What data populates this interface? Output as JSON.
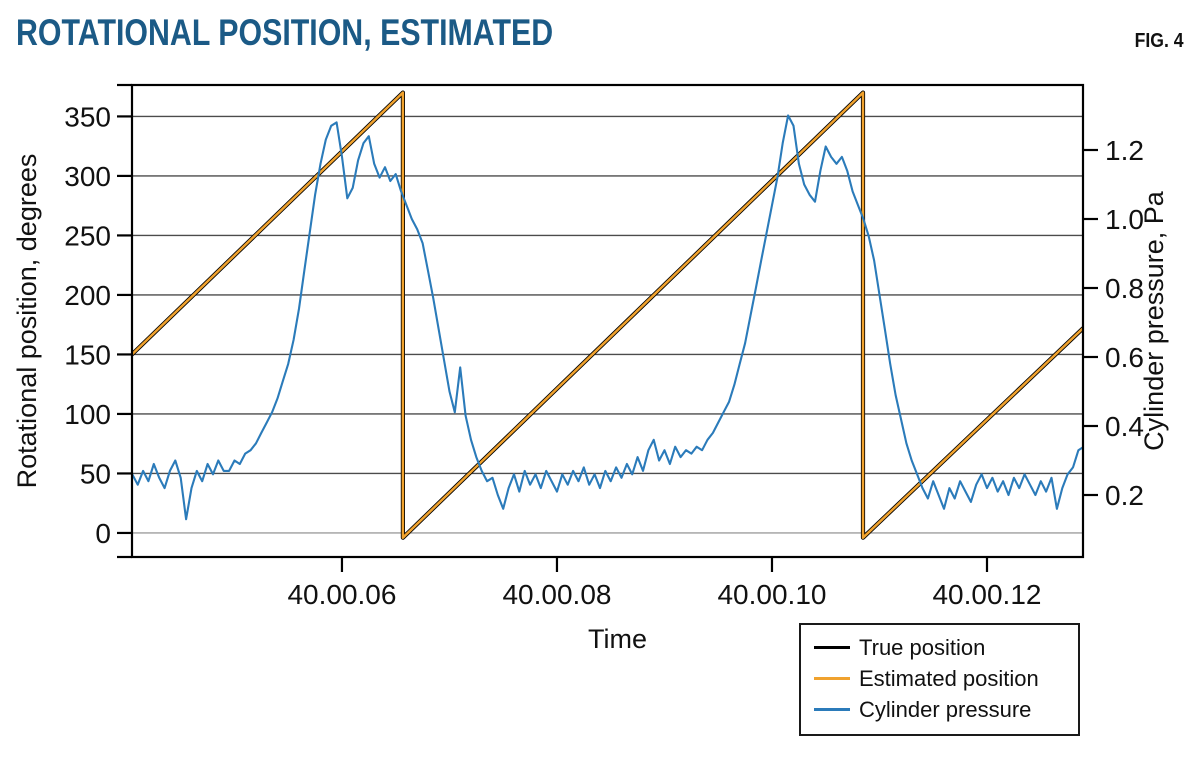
{
  "header": {
    "title": "ROTATIONAL POSITION, ESTIMATED",
    "title_color": "#1b5a86",
    "figure_label": "FIG. 4"
  },
  "chart_data": {
    "type": "line",
    "title": "ROTATIONAL POSITION, ESTIMATED",
    "xlabel": "Time",
    "x_range": [
      4.047,
      12.893
    ],
    "x_ticks": [
      {
        "value": 6,
        "label": "40.00.06"
      },
      {
        "value": 8,
        "label": "40.00.08"
      },
      {
        "value": 10,
        "label": "40.00.10"
      },
      {
        "value": 12,
        "label": "40.00.12"
      }
    ],
    "y_left": {
      "label": "Rotational position, degrees",
      "ticks": [
        0,
        50,
        100,
        150,
        200,
        250,
        300,
        350
      ],
      "range": [
        -20.2,
        376.4
      ],
      "edge_ticks": true
    },
    "y_right": {
      "label": "Cylinder pressure, Pa",
      "ticks": [
        0.2,
        0.4,
        0.6,
        0.8,
        1.0,
        1.2
      ],
      "range": [
        0.0203,
        1.3884
      ],
      "edge_ticks": false
    },
    "grid": {
      "horizontal": true,
      "vertical": false,
      "color": "#4b4b4b",
      "zero_line_color": "#9e9e9e",
      "spine_color": "#000000",
      "tick_label_color": "#111111"
    },
    "legend": {
      "position": "bottom-right-outside",
      "entries": [
        {
          "label": "True position",
          "color": "#000000"
        },
        {
          "label": "Estimated position",
          "color": "#f0a22e"
        },
        {
          "label": "Cylinder pressure",
          "color": "#2b7bba"
        }
      ]
    },
    "series": [
      {
        "name": "True position",
        "axis": "left",
        "color": "#000000",
        "width": 4.2,
        "points": [
          [
            4.047,
            150
          ],
          [
            6.567,
            370
          ],
          [
            6.567,
            -4
          ],
          [
            10.847,
            370
          ],
          [
            10.847,
            -4
          ],
          [
            12.893,
            172
          ]
        ]
      },
      {
        "name": "Estimated position",
        "axis": "left",
        "color": "#f0a22e",
        "width": 2.5,
        "points": [
          [
            4.047,
            150
          ],
          [
            6.567,
            370
          ],
          [
            6.567,
            -4
          ],
          [
            10.847,
            370
          ],
          [
            10.847,
            -4
          ],
          [
            12.893,
            172
          ]
        ]
      },
      {
        "name": "Cylinder pressure",
        "axis": "right",
        "color": "#2b7bba",
        "width": 2.1,
        "x0": 4.05,
        "dx": 0.05,
        "values": [
          0.26,
          0.23,
          0.27,
          0.24,
          0.29,
          0.25,
          0.22,
          0.27,
          0.3,
          0.25,
          0.13,
          0.22,
          0.27,
          0.24,
          0.29,
          0.26,
          0.3,
          0.27,
          0.27,
          0.3,
          0.29,
          0.32,
          0.33,
          0.35,
          0.38,
          0.41,
          0.44,
          0.48,
          0.53,
          0.58,
          0.65,
          0.74,
          0.85,
          0.96,
          1.07,
          1.16,
          1.23,
          1.27,
          1.28,
          1.18,
          1.06,
          1.09,
          1.17,
          1.22,
          1.24,
          1.16,
          1.12,
          1.15,
          1.11,
          1.13,
          1.08,
          1.04,
          1.0,
          0.97,
          0.93,
          0.85,
          0.77,
          0.68,
          0.59,
          0.5,
          0.44,
          0.57,
          0.43,
          0.36,
          0.31,
          0.27,
          0.24,
          0.25,
          0.2,
          0.16,
          0.22,
          0.26,
          0.21,
          0.27,
          0.23,
          0.26,
          0.22,
          0.27,
          0.24,
          0.21,
          0.26,
          0.23,
          0.27,
          0.24,
          0.28,
          0.23,
          0.26,
          0.22,
          0.27,
          0.24,
          0.28,
          0.25,
          0.29,
          0.26,
          0.31,
          0.27,
          0.33,
          0.36,
          0.3,
          0.33,
          0.29,
          0.34,
          0.31,
          0.33,
          0.32,
          0.34,
          0.33,
          0.36,
          0.38,
          0.41,
          0.44,
          0.47,
          0.52,
          0.58,
          0.64,
          0.72,
          0.8,
          0.88,
          0.96,
          1.04,
          1.12,
          1.22,
          1.3,
          1.27,
          1.16,
          1.1,
          1.07,
          1.05,
          1.14,
          1.21,
          1.18,
          1.16,
          1.18,
          1.14,
          1.08,
          1.04,
          1.0,
          0.95,
          0.88,
          0.78,
          0.68,
          0.58,
          0.49,
          0.42,
          0.35,
          0.3,
          0.26,
          0.22,
          0.19,
          0.24,
          0.2,
          0.16,
          0.22,
          0.19,
          0.24,
          0.21,
          0.18,
          0.23,
          0.26,
          0.22,
          0.25,
          0.21,
          0.24,
          0.2,
          0.25,
          0.22,
          0.26,
          0.23,
          0.2,
          0.24,
          0.21,
          0.25,
          0.16,
          0.22,
          0.26,
          0.28,
          0.33,
          0.34
        ]
      }
    ]
  }
}
